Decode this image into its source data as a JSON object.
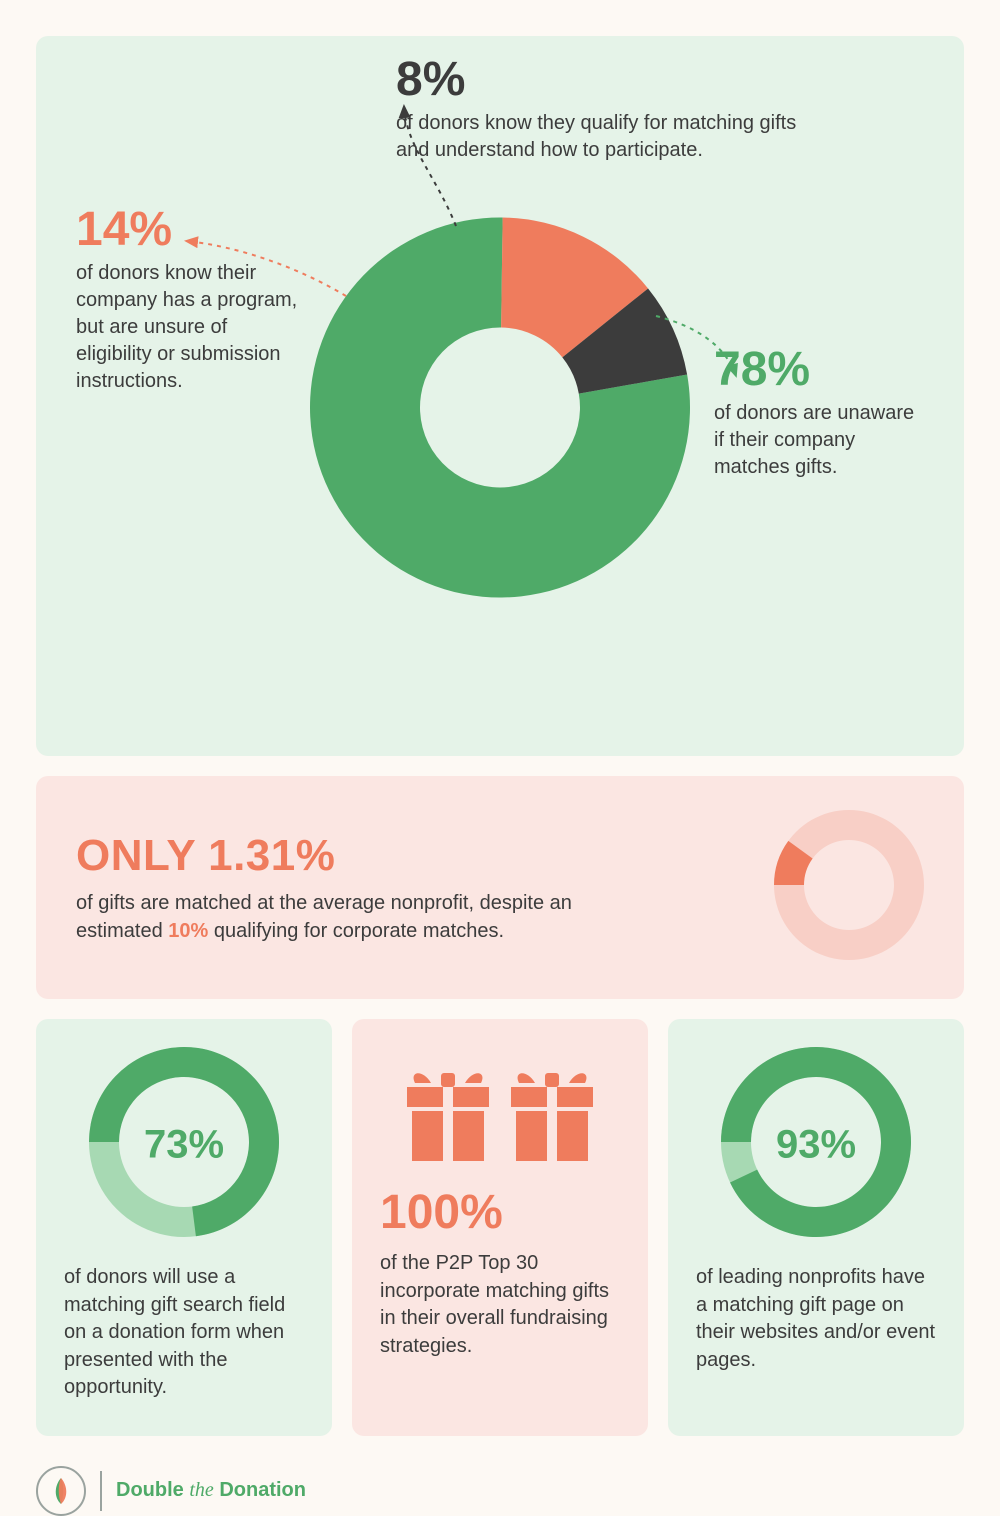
{
  "colors": {
    "page_bg": "#fdf9f4",
    "panel_green": "#e5f3e8",
    "panel_pink": "#fbe6e2",
    "green": "#4faa68",
    "green_light": "#a7d9b3",
    "orange": "#ef7c5d",
    "orange_light": "#f5b9aa",
    "dark": "#3c3c3c",
    "text": "#3c3c3c"
  },
  "top_donut": {
    "type": "donut",
    "size": 380,
    "thickness": 110,
    "start_angle_deg": 80,
    "slices": [
      {
        "label_pct": "78%",
        "value": 78,
        "color": "#4faa68",
        "text": "of donors are unaware if their company matches gifts.",
        "callout_color": "#4faa68"
      },
      {
        "label_pct": "14%",
        "value": 14,
        "color": "#ef7c5d",
        "text": "of donors know their company has a program, but are unsure of eligibility or submission instructions.",
        "callout_color": "#ef7c5d"
      },
      {
        "label_pct": "8%",
        "value": 8,
        "color": "#3c3c3c",
        "text": "of donors know they qualify for matching gifts and understand how to participate.",
        "callout_color": "#3c3c3c"
      }
    ]
  },
  "mid": {
    "headline": "ONLY 1.31%",
    "headline_color": "#ef7c5d",
    "sub_pre": "of gifts are matched at the average nonprofit, despite an estimated ",
    "highlight": "10%",
    "highlight_color": "#ef7c5d",
    "sub_post": " qualifying for corporate matches.",
    "ring": {
      "type": "donut",
      "size": 150,
      "thickness": 30,
      "value": 10,
      "fg_color": "#ef7c5d",
      "bg_color": "#f8cfc6",
      "start_angle_deg": -90
    }
  },
  "cards": [
    {
      "bg": "#e5f3e8",
      "ring": {
        "size": 190,
        "thickness": 30,
        "value": 73,
        "fg_color": "#4faa68",
        "bg_color": "#a7d9b3",
        "start_angle_deg": -90
      },
      "pct_label": "73%",
      "pct_color": "#4faa68",
      "desc": "of donors will use a matching gift search field on a donation form when presented with the opportunity."
    },
    {
      "bg": "#fbe6e2",
      "gift_icon_color": "#ef7c5d",
      "big": "100%",
      "big_color": "#ef7c5d",
      "desc": "of the P2P Top 30 incorporate matching gifts in their overall fundraising strategies."
    },
    {
      "bg": "#e5f3e8",
      "ring": {
        "size": 190,
        "thickness": 30,
        "value": 93,
        "fg_color": "#4faa68",
        "bg_color": "#a7d9b3",
        "start_angle_deg": -90
      },
      "pct_label": "93%",
      "pct_color": "#4faa68",
      "desc": "of leading nonprofits have a matching gift page on their websites and/or event pages."
    }
  ],
  "footer": {
    "brand_pre": "Double",
    "brand_script": "the",
    "brand_post": "Donation",
    "brand_color": "#4faa68",
    "logo_leaf_green": "#4faa68",
    "logo_leaf_orange": "#ef7c5d"
  }
}
